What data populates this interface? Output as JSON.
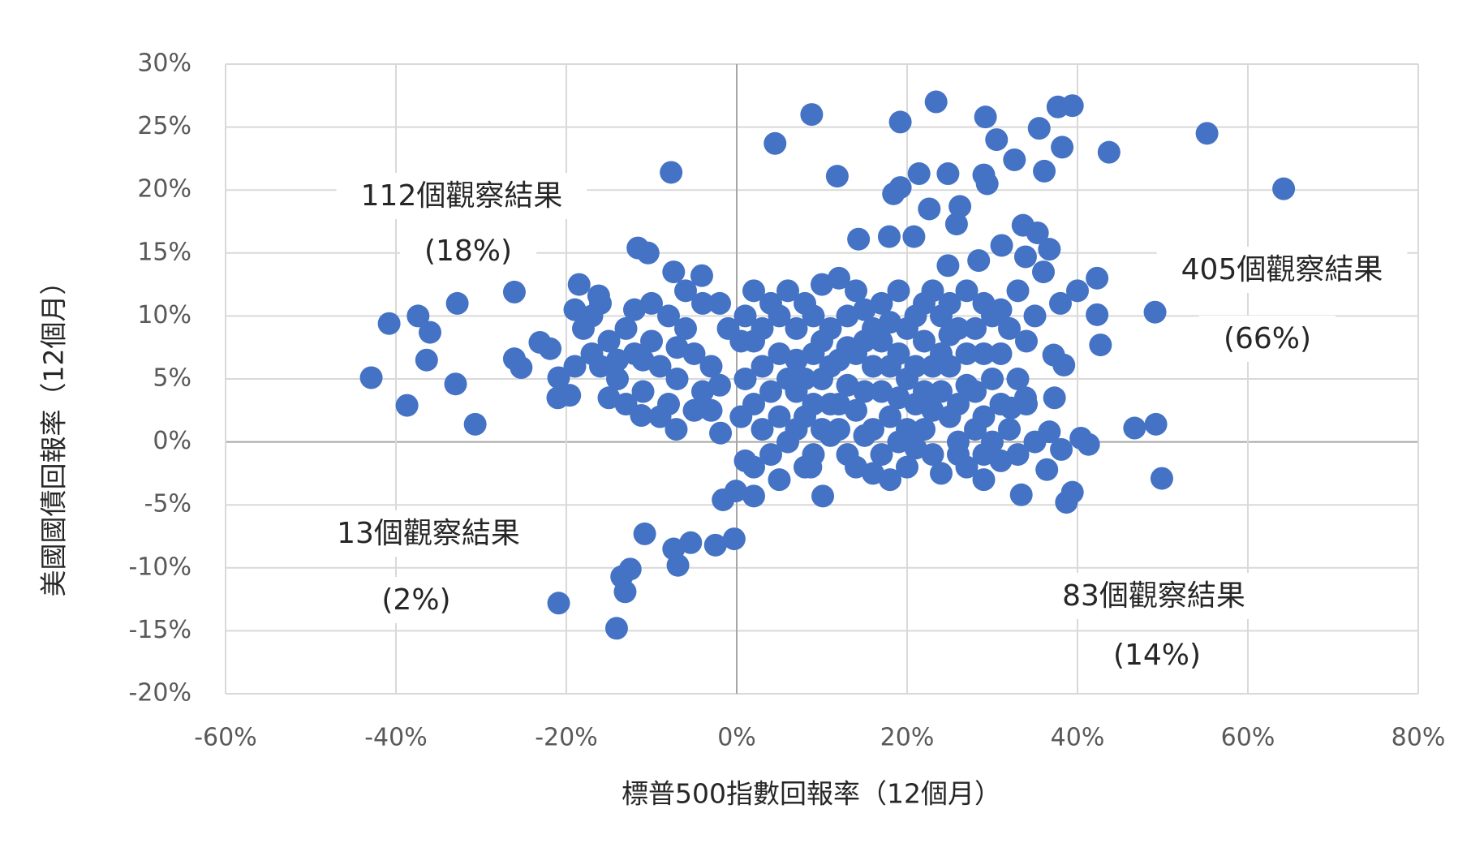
{
  "chart_data": {
    "type": "scatter",
    "x_label": "標普500指數回報率（12個月）",
    "y_label": "美國國債回報率（12個月）",
    "annotations": [
      "112個觀察結果",
      "(18%)",
      "405個觀察結果",
      "(66%)",
      "13個觀察結果",
      "(2%)",
      "83個觀察結果",
      "(14%)"
    ],
    "color": "#4472c4",
    "grid": true,
    "xlim": [
      -60,
      80
    ],
    "xticks": [
      {
        "value": -60,
        "label": "-60%"
      },
      {
        "value": -40,
        "label": "-40%"
      },
      {
        "value": -20,
        "label": "-20%"
      },
      {
        "value": 0,
        "label": "0%"
      },
      {
        "value": 20,
        "label": "20%"
      },
      {
        "value": 40,
        "label": "40%"
      },
      {
        "value": 60,
        "label": "60%"
      },
      {
        "value": 80,
        "label": "80%"
      }
    ],
    "ylim": [
      -20,
      30
    ],
    "yticks": [
      {
        "value": -20,
        "label": "-20%"
      },
      {
        "value": -15,
        "label": "-15%"
      },
      {
        "value": -10,
        "label": "-10%"
      },
      {
        "value": -5,
        "label": "-5%"
      },
      {
        "value": 0,
        "label": "0%"
      },
      {
        "value": 5,
        "label": "5%"
      },
      {
        "value": 10,
        "label": "10%"
      },
      {
        "value": 15,
        "label": "15%"
      },
      {
        "value": 20,
        "label": "20%"
      },
      {
        "value": 25,
        "label": "25%"
      },
      {
        "value": 30,
        "label": "30%"
      }
    ],
    "x": [
      -42.9,
      -40.8,
      -38.7,
      -37.4,
      -36.4,
      -36.0,
      -32.8,
      -33.0,
      -30.7,
      -26.1,
      -26.1,
      -25.3,
      -25.2,
      -23.1,
      -21.9,
      -20.9,
      -21.0,
      -19.6,
      -20.9,
      -18.5,
      -16.2,
      -14.1,
      -13.1,
      -13.5,
      -12.5,
      -10.8,
      -7.7,
      -6.9,
      -7.4,
      -5.4,
      -2.5,
      -0.3,
      -1.6,
      -0.1,
      2.0,
      4.5,
      8.8,
      11.8,
      19.2,
      23.4,
      21.4,
      24.8,
      29.2,
      30.5,
      32.6,
      35.5,
      36.1,
      37.7,
      39.4,
      38.2,
      43.7,
      55.2,
      64.2,
      49.1,
      46.7,
      49.2,
      49.9,
      42.3,
      42.7,
      42.3,
      40.4,
      41.3,
      39.4,
      38.7,
      33.4,
      29.0,
      29.0,
      29.4,
      26.2,
      25.8,
      22.6,
      19.2,
      18.4,
      14.3,
      17.9,
      20.8,
      31.1,
      33.6,
      35.3,
      36.7,
      33.9,
      28.4,
      24.8,
      37.2,
      38.4,
      37.3,
      33.9,
      32.2,
      36.7,
      38.1,
      36.4,
      10.1,
      8.7,
      -7.4,
      -4.1,
      -11.6,
      -10.4,
      -1.9,
      -7.1,
      -11.2,
      -19,
      -18,
      -17,
      -16,
      -15,
      -14,
      -13,
      -12,
      -11,
      -10,
      -9,
      -8,
      -7,
      -6,
      -5,
      -4,
      -3,
      -2,
      -1,
      -15,
      -13,
      -12,
      -10,
      -8,
      -6,
      -4,
      -3,
      -9,
      -11,
      -17,
      -14,
      -7,
      -5,
      -2,
      -16,
      -19,
      1,
      2,
      3,
      4,
      5,
      6,
      7,
      8,
      9,
      10,
      11,
      12,
      13,
      14,
      15,
      16,
      17,
      18,
      19,
      20,
      21,
      22,
      23,
      24,
      25,
      26,
      27,
      28,
      29,
      30,
      31,
      32,
      33,
      34,
      2,
      3,
      4,
      5,
      6,
      7,
      8,
      9,
      10,
      11,
      12,
      13,
      14,
      15,
      16,
      17,
      18,
      19,
      20,
      21,
      22,
      23,
      24,
      25,
      26,
      27,
      28,
      29,
      30,
      31,
      1,
      1,
      2,
      3,
      4,
      5,
      6,
      7,
      8,
      9,
      10,
      11,
      12,
      13,
      14,
      15,
      16,
      17,
      18,
      19,
      20,
      21,
      22,
      23,
      24,
      25,
      26,
      27,
      28,
      29,
      30,
      31,
      32,
      33,
      34,
      35,
      8,
      10,
      12,
      14,
      16,
      18,
      20,
      22,
      24,
      26,
      2,
      5,
      7,
      9,
      11,
      13,
      15,
      17,
      19,
      21,
      23,
      25,
      27,
      29,
      31,
      33,
      35,
      36,
      38,
      40,
      0.5,
      0.5
    ],
    "values": [
      5.1,
      9.4,
      2.9,
      10.0,
      6.5,
      8.7,
      11.0,
      4.6,
      1.4,
      11.9,
      6.6,
      5.9,
      14.4,
      7.9,
      7.4,
      5.1,
      3.5,
      3.7,
      -12.8,
      12.5,
      11.6,
      -14.8,
      -11.9,
      -10.7,
      -10.1,
      -7.3,
      21.4,
      -9.8,
      -8.5,
      -8.0,
      -8.2,
      -7.7,
      -4.6,
      -3.9,
      -4.3,
      23.7,
      26.0,
      21.1,
      25.4,
      27.0,
      21.3,
      21.3,
      25.8,
      24.0,
      22.4,
      24.9,
      21.5,
      26.6,
      26.7,
      23.4,
      23.0,
      24.5,
      20.1,
      10.3,
      1.1,
      1.4,
      -2.9,
      10.1,
      7.7,
      13.0,
      0.3,
      -0.2,
      -4.0,
      -4.8,
      -4.2,
      -3.0,
      21.2,
      20.5,
      18.7,
      17.3,
      18.5,
      20.2,
      19.7,
      16.1,
      16.3,
      16.3,
      15.6,
      17.2,
      16.6,
      15.3,
      14.7,
      14.4,
      14.0,
      6.9,
      6.1,
      3.5,
      3.5,
      2.7,
      0.8,
      -0.6,
      -2.2,
      -4.3,
      -2.0,
      13.5,
      13.2,
      15.4,
      15.0,
      0.7,
      1.0,
      2.1,
      10.5,
      9,
      7,
      6,
      8,
      5,
      9,
      7,
      4,
      8,
      6,
      3,
      5,
      9,
      7,
      4,
      6,
      11,
      9,
      3.5,
      3,
      10.5,
      11,
      10,
      12,
      11,
      2.5,
      2,
      6.5,
      10,
      6.5,
      7.5,
      2.5,
      4.5,
      11,
      6,
      10,
      8,
      6,
      4,
      2,
      0,
      9,
      11,
      7,
      5,
      3,
      1,
      -1,
      12,
      8,
      6,
      4,
      2,
      0,
      -2,
      10,
      8,
      6,
      4,
      2,
      0,
      -2,
      9,
      7,
      5,
      3,
      1,
      -1,
      8,
      3,
      1,
      -1,
      -3,
      12,
      4,
      2,
      -1,
      12.5,
      9,
      6.5,
      4.5,
      2.5,
      0.5,
      -2.5,
      11,
      9.5,
      7,
      5,
      3,
      1,
      -1,
      -2.5,
      11,
      9,
      7,
      4,
      2,
      0,
      -1.5,
      5,
      -1.5,
      -2,
      9,
      11,
      7,
      5,
      1,
      -2,
      10,
      8,
      6,
      13,
      10,
      7,
      4,
      1,
      -1,
      -3,
      12,
      9,
      6,
      4,
      12,
      10,
      6,
      3,
      12,
      1,
      -1,
      10,
      7,
      9,
      5,
      3,
      0,
      5,
      1,
      3,
      -2,
      9,
      6,
      1,
      11,
      7,
      -1,
      12,
      10,
      6.5,
      3,
      0.5,
      7.5,
      10.5,
      8,
      3.5,
      -0.5,
      2.5,
      8.5,
      4.5,
      11,
      10.5,
      12,
      10,
      13.5,
      11,
      12,
      8,
      2
    ]
  }
}
